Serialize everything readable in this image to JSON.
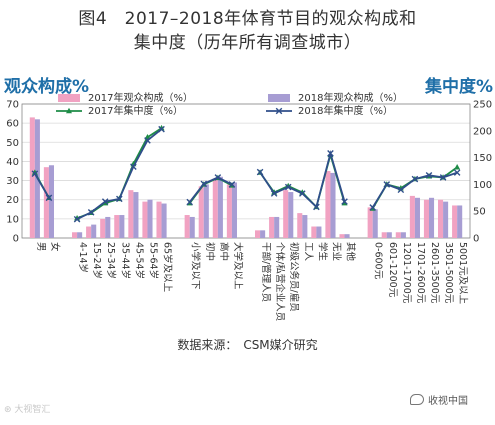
{
  "header": {
    "title_line1": "图4　2017–2018年体育节目的观众构成和",
    "title_line2": "集中度（历年所有调查城市）"
  },
  "footer": {
    "source": "数据来源：　CSM媒介研究",
    "watermark_left": "⊛ 大视智汇",
    "watermark_right": "收视中国"
  },
  "chart_data": {
    "type": "bar",
    "left_axis_title": "观众构成%",
    "right_axis_title": "集中度%",
    "ylim": [
      0,
      70
    ],
    "y_ticks": [
      0,
      10,
      20,
      30,
      40,
      50,
      60,
      70
    ],
    "y2lim": [
      0,
      250
    ],
    "y2_ticks": [
      0,
      50,
      100,
      150,
      200,
      250
    ],
    "legend_placement": "top",
    "grid": true,
    "colors": {
      "bar2017": "#f1a2c2",
      "bar2018": "#a79dd3",
      "line2017": "#1e8c47",
      "line2018": "#2f4e8a",
      "axis_title": "#1f6fa8"
    },
    "groups": [
      [
        "男",
        "女"
      ],
      [
        "4-14岁",
        "15-24岁",
        "25-34岁",
        "35-44岁",
        "45-54岁",
        "55-64岁",
        "65岁及以上"
      ],
      [
        "小学及以下",
        "初中",
        "高中",
        "大学及以上"
      ],
      [
        "干部/管理人员",
        "个体/私营企业人员",
        "初级公务员/雇员",
        "工人",
        "学生",
        "无业",
        "其他"
      ],
      [
        "0-600元",
        "601-1200元",
        "1201-1700元",
        "1701-2600元",
        "2601-3500元",
        "3501-5000元",
        "5001元及以上"
      ]
    ],
    "series": [
      {
        "name": "2017年观众构成（%）",
        "kind": "bar",
        "axis": "left",
        "values": [
          63,
          37,
          3,
          6,
          10,
          12,
          25,
          19,
          19,
          12,
          27,
          31,
          28,
          4,
          11,
          25,
          13,
          6,
          35,
          2,
          16,
          3,
          3,
          22,
          20,
          20,
          17
        ]
      },
      {
        "name": "2018年观众构成（%）",
        "kind": "bar",
        "axis": "left",
        "values": [
          62,
          38,
          3,
          7,
          11,
          12,
          24,
          20,
          18,
          11,
          28,
          32,
          29,
          4,
          11,
          24,
          12,
          6,
          34,
          2,
          15,
          3,
          3,
          21,
          21,
          19,
          17
        ]
      },
      {
        "name": "2017年集中度（%）",
        "kind": "line",
        "axis": "right",
        "values": [
          122,
          75,
          37,
          47,
          65,
          73,
          138,
          188,
          205,
          65,
          100,
          112,
          98,
          122,
          85,
          97,
          85,
          58,
          155,
          65,
          55,
          100,
          93,
          110,
          115,
          113,
          132
        ]
      },
      {
        "name": "2018年集中度（%）",
        "kind": "line",
        "axis": "right",
        "values": [
          120,
          75,
          35,
          48,
          68,
          73,
          133,
          182,
          203,
          67,
          101,
          113,
          100,
          123,
          83,
          95,
          83,
          58,
          158,
          68,
          57,
          100,
          90,
          110,
          117,
          113,
          122
        ]
      }
    ]
  }
}
